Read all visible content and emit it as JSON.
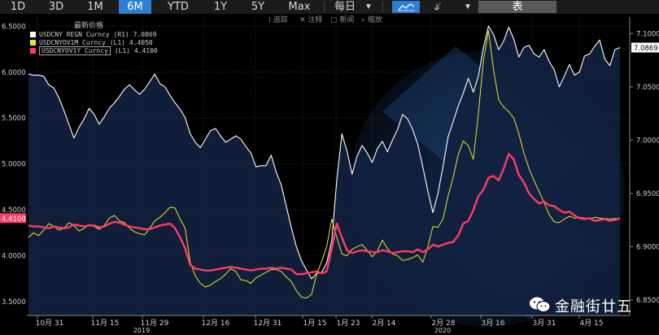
{
  "toolbar": {
    "ranges": [
      "1D",
      "3D",
      "1M",
      "6M",
      "YTD",
      "1Y",
      "5Y",
      "Max"
    ],
    "active_range": "6M",
    "frequency": "每日",
    "table_button": "表"
  },
  "subtools": [
    "追踪",
    "注释",
    "新闻",
    "缩放"
  ],
  "legend": {
    "title": "最新价格",
    "items": [
      {
        "name": "USDCNY REGN Curncy",
        "axis": "(R1)",
        "value": "7.0869",
        "color": "#ffffff"
      },
      {
        "name": "USDCNYOV1M Curncy",
        "axis": "(L1)",
        "value": "4.4050",
        "color": "#e6e62a"
      },
      {
        "name": "USDCNYOV1Y Curncy",
        "axis": "(L1)",
        "value": "4.4100",
        "color": "#ff3b64"
      }
    ]
  },
  "watermark": {
    "text": "金融街廿五"
  },
  "chart_data": {
    "type": "line",
    "x_tick_labels": [
      "10月 31",
      "11月 15",
      "11月 29",
      "12月 16",
      "12月 31",
      "1月 15",
      "1月 23",
      "2月 14",
      "2月 28",
      "3月 16",
      "3月 31",
      "4月 15"
    ],
    "year_labels": [
      "2019",
      "2020"
    ],
    "left_axis": {
      "ticks": [
        "6.5000",
        "6.0000",
        "5.5000",
        "5.0000",
        "4.5000",
        "4.0000",
        "3.5000"
      ],
      "ylim": [
        3.35,
        6.6
      ]
    },
    "right_axis": {
      "ticks": [
        "7.1000",
        "7.0500",
        "7.0000",
        "6.9500",
        "6.9000",
        "6.8500"
      ],
      "ylim": [
        6.8355,
        7.1155
      ]
    },
    "last_value_labels": {
      "left": "4.4100",
      "right": "7.0869"
    },
    "series": [
      {
        "name": "USDCNY REGN Curncy",
        "axis": "right",
        "color": "#ffffff",
        "fill": "#11213f",
        "values": [
          7.062,
          7.061,
          7.061,
          7.06,
          7.052,
          7.049,
          7.04,
          7.028,
          7.015,
          7.002,
          7.012,
          7.02,
          7.03,
          7.024,
          7.015,
          7.022,
          7.03,
          7.035,
          7.041,
          7.048,
          7.052,
          7.047,
          7.043,
          7.048,
          7.055,
          7.062,
          7.053,
          7.05,
          7.042,
          7.035,
          7.029,
          7.021,
          7.006,
          6.998,
          6.993,
          7.001,
          7.009,
          7.011,
          7.004,
          6.998,
          7.001,
          7.004,
          7.001,
          6.994,
          6.988,
          6.975,
          6.976,
          6.976,
          6.986,
          6.97,
          6.958,
          6.938,
          6.918,
          6.9,
          6.887,
          6.878,
          6.87,
          6.875,
          6.876,
          6.885,
          6.906,
          6.963,
          7.006,
          6.99,
          6.968,
          6.985,
          6.995,
          6.988,
          6.979,
          6.992,
          6.999,
          6.989,
          7.0,
          7.01,
          7.024,
          7.02,
          7.01,
          6.996,
          6.975,
          6.952,
          6.932,
          6.95,
          6.975,
          7.003,
          7.017,
          7.032,
          7.044,
          7.058,
          7.045,
          7.06,
          7.087,
          7.107,
          7.099,
          7.085,
          7.093,
          7.106,
          7.095,
          7.078,
          7.087,
          7.089,
          7.081,
          7.078,
          7.085,
          7.074,
          7.066,
          7.05,
          7.06,
          7.071,
          7.061,
          7.064,
          7.079,
          7.081,
          7.088,
          7.094,
          7.076,
          7.07,
          7.085,
          7.0869
        ]
      },
      {
        "name": "USDCNYOV1M Curncy",
        "axis": "left",
        "color": "#e6e62a",
        "values": [
          4.2,
          4.25,
          4.22,
          4.28,
          4.35,
          4.32,
          4.28,
          4.3,
          4.36,
          4.33,
          4.27,
          4.3,
          4.34,
          4.32,
          4.29,
          4.33,
          4.41,
          4.44,
          4.38,
          4.36,
          4.3,
          4.26,
          4.24,
          4.23,
          4.3,
          4.38,
          4.42,
          4.47,
          4.53,
          4.52,
          4.4,
          4.3,
          3.93,
          3.78,
          3.7,
          3.66,
          3.68,
          3.72,
          3.75,
          3.8,
          3.86,
          3.83,
          3.74,
          3.73,
          3.7,
          3.76,
          3.79,
          3.82,
          3.85,
          3.85,
          3.83,
          3.77,
          3.72,
          3.62,
          3.55,
          3.54,
          3.58,
          3.8,
          3.94,
          4.1,
          4.4,
          4.2,
          4.02,
          4.0,
          4.07,
          4.1,
          4.12,
          4.06,
          3.99,
          4.05,
          4.17,
          4.08,
          4.02,
          4.0,
          3.95,
          3.96,
          3.98,
          4.01,
          3.93,
          4.1,
          4.32,
          4.31,
          4.4,
          4.65,
          4.85,
          5.1,
          5.25,
          5.2,
          5.05,
          5.55,
          6.13,
          6.45,
          6.02,
          5.7,
          5.62,
          5.57,
          5.5,
          5.33,
          5.12,
          4.95,
          4.82,
          4.7,
          4.58,
          4.45,
          4.37,
          4.36,
          4.4,
          4.43,
          4.41,
          4.42,
          4.41,
          4.4,
          4.42,
          4.41,
          4.405,
          4.4,
          4.405,
          4.405
        ]
      },
      {
        "name": "USDCNYOV1Y Curncy",
        "axis": "left",
        "color": "#ff3b64",
        "values": [
          4.33,
          4.32,
          4.32,
          4.31,
          4.3,
          4.32,
          4.31,
          4.3,
          4.31,
          4.34,
          4.33,
          4.32,
          4.33,
          4.33,
          4.31,
          4.32,
          4.35,
          4.37,
          4.36,
          4.34,
          4.32,
          4.31,
          4.3,
          4.29,
          4.29,
          4.31,
          4.33,
          4.34,
          4.35,
          4.3,
          4.2,
          4.08,
          3.9,
          3.86,
          3.85,
          3.84,
          3.84,
          3.85,
          3.86,
          3.87,
          3.88,
          3.87,
          3.86,
          3.85,
          3.84,
          3.85,
          3.86,
          3.86,
          3.87,
          3.86,
          3.87,
          3.86,
          3.85,
          3.8,
          3.8,
          3.81,
          3.82,
          3.83,
          3.81,
          3.83,
          4.08,
          4.35,
          4.2,
          4.06,
          4.03,
          4.05,
          4.06,
          4.05,
          4.04,
          4.04,
          4.06,
          4.05,
          4.03,
          4.04,
          4.05,
          4.05,
          4.04,
          4.07,
          4.04,
          4.07,
          4.12,
          4.1,
          4.12,
          4.14,
          4.15,
          4.22,
          4.35,
          4.38,
          4.5,
          4.65,
          4.72,
          4.85,
          4.87,
          4.82,
          4.95,
          5.11,
          5.05,
          4.88,
          4.8,
          4.68,
          4.62,
          4.57,
          4.59,
          4.55,
          4.54,
          4.5,
          4.47,
          4.48,
          4.44,
          4.41,
          4.4,
          4.41,
          4.38,
          4.39,
          4.4,
          4.38,
          4.39,
          4.41
        ]
      }
    ]
  }
}
